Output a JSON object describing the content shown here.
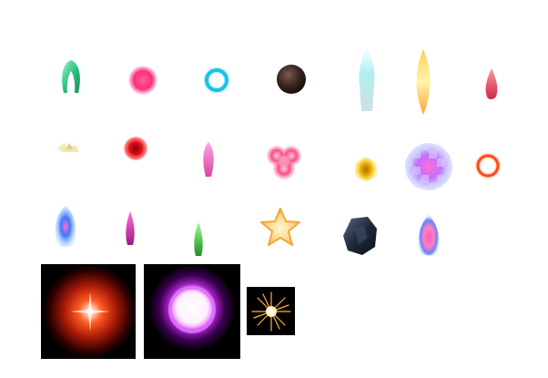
{
  "sheet": {
    "background": "#ffffff",
    "rows": 3,
    "panels": 3
  },
  "sprites": [
    {
      "name": "green-crescent-icon",
      "color": "#22c07a"
    },
    {
      "name": "pink-orb-icon",
      "color": "#ff2d7a"
    },
    {
      "name": "cyan-ring-icon",
      "color": "#19c2e8"
    },
    {
      "name": "dark-sphere-icon",
      "color": "#3a2420"
    },
    {
      "name": "ice-crystal-icon",
      "color": "#a8ecf0"
    },
    {
      "name": "golden-flame-icon",
      "color": "#ffb02a"
    },
    {
      "name": "red-teardrop-icon",
      "color": "#e8304a"
    },
    {
      "name": "yellow-spark-icon",
      "color": "#f2e8a0"
    },
    {
      "name": "red-fireball-icon",
      "color": "#e0101a"
    },
    {
      "name": "magenta-droplet-icon",
      "color": "#f060c8"
    },
    {
      "name": "pink-cluster-icon",
      "color": "#ff4a8a"
    },
    {
      "name": "amber-gem-icon",
      "color": "#e8b000"
    },
    {
      "name": "checkered-orb-icon",
      "color": "#c070ff"
    },
    {
      "name": "orange-ring-icon",
      "color": "#ff5a20"
    },
    {
      "name": "blue-wisp-icon",
      "color": "#3a7aff"
    },
    {
      "name": "magenta-spike-icon",
      "color": "#d02aa8"
    },
    {
      "name": "green-spike-icon",
      "color": "#2ac030"
    },
    {
      "name": "golden-star-icon",
      "color": "#f5b840"
    },
    {
      "name": "dark-rock-icon",
      "color": "#1e2a3a"
    },
    {
      "name": "blue-pink-flame-icon",
      "color": "#6a80ff"
    }
  ],
  "effects": [
    {
      "name": "red-glow-burst-icon",
      "color": "#ff3a10"
    },
    {
      "name": "purple-energy-ring-icon",
      "color": "#d060ff"
    },
    {
      "name": "firework-spark-icon",
      "color": "#ffb040"
    }
  ]
}
